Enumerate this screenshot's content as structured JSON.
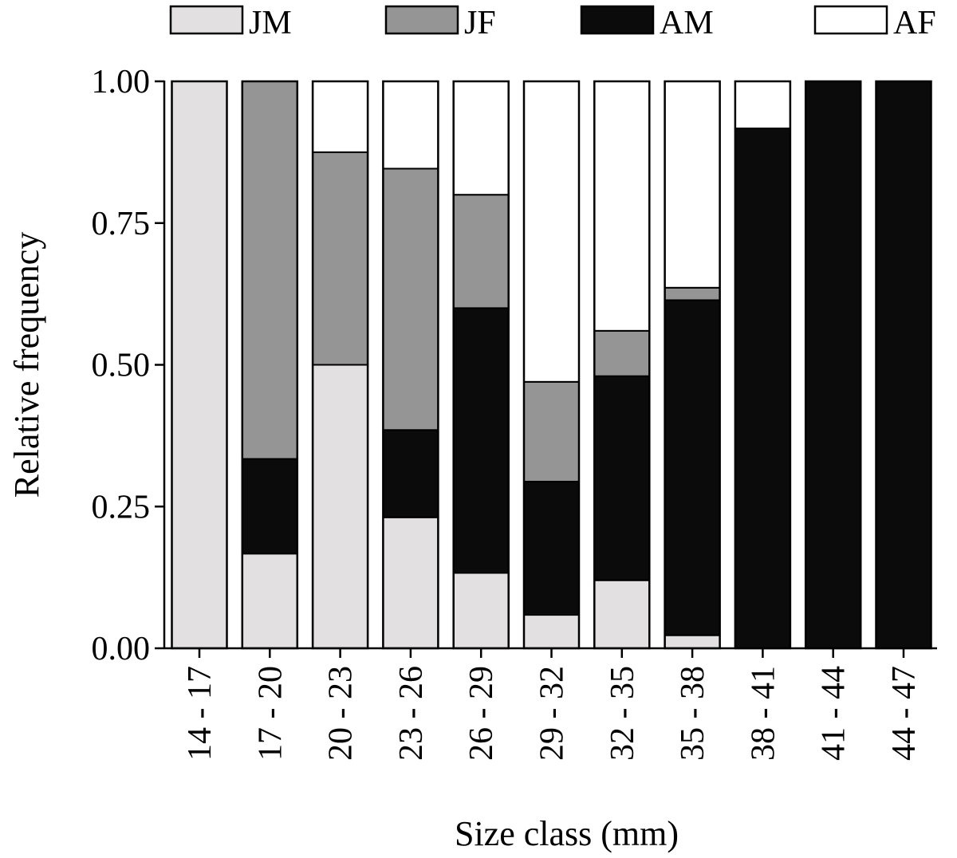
{
  "chart_data": {
    "type": "bar",
    "stacked": true,
    "title": "",
    "xlabel": "Size class (mm)",
    "ylabel": "Relative frequency",
    "ylim": [
      0,
      1
    ],
    "yticks": [
      "0.00",
      "0.25",
      "0.50",
      "0.75",
      "1.00"
    ],
    "ytick_values": [
      0,
      0.25,
      0.5,
      0.75,
      1.0
    ],
    "grid": false,
    "legend_position": "top",
    "categories": [
      "14-17",
      "17-20",
      "20-23",
      "23-26",
      "26-29",
      "29-32",
      "32-35",
      "35-38",
      "38-41",
      "41-44",
      "44-47"
    ],
    "series": [
      {
        "name": "JM",
        "color": "#e3e0e1",
        "values": [
          1.0,
          0.167,
          0.5,
          0.231,
          0.133,
          0.059,
          0.12,
          0.023,
          0.0,
          0.0,
          0.0
        ]
      },
      {
        "name": "AM",
        "color": "#0b0b0b",
        "values": [
          0.0,
          0.167,
          0.0,
          0.154,
          0.467,
          0.235,
          0.36,
          0.591,
          0.917,
          1.0,
          1.0
        ]
      },
      {
        "name": "JF",
        "color": "#959595",
        "values": [
          0.0,
          0.666,
          0.375,
          0.461,
          0.2,
          0.176,
          0.08,
          0.022,
          0.0,
          0.0,
          0.0
        ]
      },
      {
        "name": "AF",
        "color": "#ffffff",
        "values": [
          0.0,
          0.0,
          0.125,
          0.154,
          0.2,
          0.53,
          0.44,
          0.364,
          0.083,
          0.0,
          0.0
        ]
      }
    ],
    "legend_order": [
      "JM",
      "JF",
      "AM",
      "AF"
    ]
  }
}
